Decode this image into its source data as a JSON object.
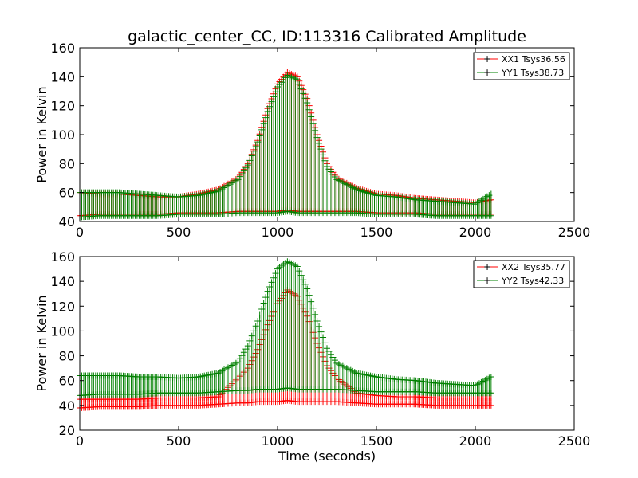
{
  "chart_data": [
    {
      "type": "scatter",
      "title": "galactic_center_CC, ID:113316 Calibrated Amplitude",
      "xlabel": "",
      "ylabel": "Power in Kelvin",
      "xlim": [
        0,
        2500
      ],
      "ylim": [
        40,
        160
      ],
      "xticks": [
        "0",
        "500",
        "1000",
        "1500",
        "2000",
        "2500"
      ],
      "yticks": [
        "40",
        "60",
        "80",
        "100",
        "120",
        "140",
        "160"
      ],
      "legend_position": "top-right",
      "grid": false,
      "marker": "+",
      "series": [
        {
          "name": "XX1 Tsys36.56",
          "color": "#ff0000",
          "x": [
            0,
            100,
            200,
            300,
            400,
            500,
            600,
            700,
            800,
            850,
            900,
            950,
            1000,
            1050,
            1100,
            1150,
            1200,
            1250,
            1300,
            1400,
            1500,
            1600,
            1700,
            1800,
            1900,
            2000,
            2080
          ],
          "y_low": [
            44,
            45,
            45,
            45,
            45,
            46,
            46,
            46,
            47,
            47,
            47,
            47,
            47,
            48,
            47,
            47,
            47,
            47,
            47,
            47,
            46,
            46,
            46,
            45,
            45,
            45,
            45
          ],
          "y_high": [
            60,
            59,
            59,
            58,
            57,
            57,
            59,
            62,
            70,
            80,
            96,
            118,
            135,
            143,
            140,
            125,
            100,
            80,
            70,
            63,
            59,
            58,
            56,
            55,
            54,
            53,
            55
          ]
        },
        {
          "name": "YY1 Tsys38.73",
          "color": "#008000",
          "x": [
            0,
            100,
            200,
            300,
            400,
            500,
            600,
            700,
            800,
            850,
            900,
            950,
            1000,
            1050,
            1100,
            1150,
            1200,
            1250,
            1300,
            1400,
            1500,
            1600,
            1700,
            1800,
            1900,
            2000,
            2080
          ],
          "y_low": [
            43,
            44,
            44,
            44,
            44,
            45,
            45,
            45,
            46,
            46,
            46,
            46,
            46,
            47,
            46,
            46,
            46,
            46,
            46,
            46,
            45,
            45,
            45,
            44,
            44,
            44,
            44
          ],
          "y_high": [
            60,
            60,
            60,
            59,
            58,
            57,
            58,
            61,
            69,
            79,
            95,
            116,
            133,
            141,
            138,
            122,
            98,
            78,
            69,
            62,
            58,
            57,
            55,
            54,
            53,
            52,
            59
          ]
        }
      ]
    },
    {
      "type": "scatter",
      "title": "",
      "xlabel": "Time (seconds)",
      "ylabel": "Power in Kelvin",
      "xlim": [
        0,
        2500
      ],
      "ylim": [
        20,
        160
      ],
      "xticks": [
        "0",
        "500",
        "1000",
        "1500",
        "2000",
        "2500"
      ],
      "yticks": [
        "20",
        "40",
        "60",
        "80",
        "100",
        "120",
        "140",
        "160"
      ],
      "legend_position": "top-right",
      "grid": false,
      "marker": "+",
      "series": [
        {
          "name": "XX2 Tsys35.77",
          "color": "#ff0000",
          "x": [
            0,
            100,
            200,
            300,
            400,
            500,
            600,
            700,
            800,
            850,
            900,
            950,
            1000,
            1050,
            1100,
            1150,
            1200,
            1250,
            1300,
            1400,
            1500,
            1600,
            1700,
            1800,
            1900,
            2000,
            2080
          ],
          "y_low": [
            38,
            39,
            39,
            39,
            40,
            40,
            40,
            41,
            42,
            42,
            43,
            43,
            43,
            44,
            43,
            43,
            43,
            43,
            43,
            42,
            41,
            41,
            41,
            40,
            40,
            40,
            40
          ],
          "y_high": [
            45,
            45,
            45,
            45,
            46,
            46,
            46,
            47,
            62,
            70,
            85,
            105,
            122,
            133,
            128,
            112,
            90,
            72,
            62,
            50,
            48,
            47,
            47,
            46,
            46,
            46,
            46
          ]
        },
        {
          "name": "YY2 Tsys42.33",
          "color": "#008000",
          "x": [
            0,
            100,
            200,
            300,
            400,
            500,
            600,
            700,
            800,
            850,
            900,
            950,
            1000,
            1050,
            1100,
            1150,
            1200,
            1250,
            1300,
            1400,
            1500,
            1600,
            1700,
            1800,
            1900,
            2000,
            2080
          ],
          "y_low": [
            48,
            49,
            49,
            49,
            50,
            50,
            50,
            51,
            52,
            52,
            53,
            53,
            53,
            54,
            53,
            53,
            53,
            53,
            53,
            52,
            51,
            51,
            51,
            50,
            50,
            50,
            50
          ],
          "y_high": [
            64,
            64,
            64,
            63,
            63,
            62,
            63,
            66,
            75,
            88,
            108,
            132,
            150,
            156,
            152,
            134,
            108,
            86,
            74,
            66,
            63,
            61,
            60,
            58,
            57,
            56,
            63
          ]
        }
      ]
    }
  ]
}
